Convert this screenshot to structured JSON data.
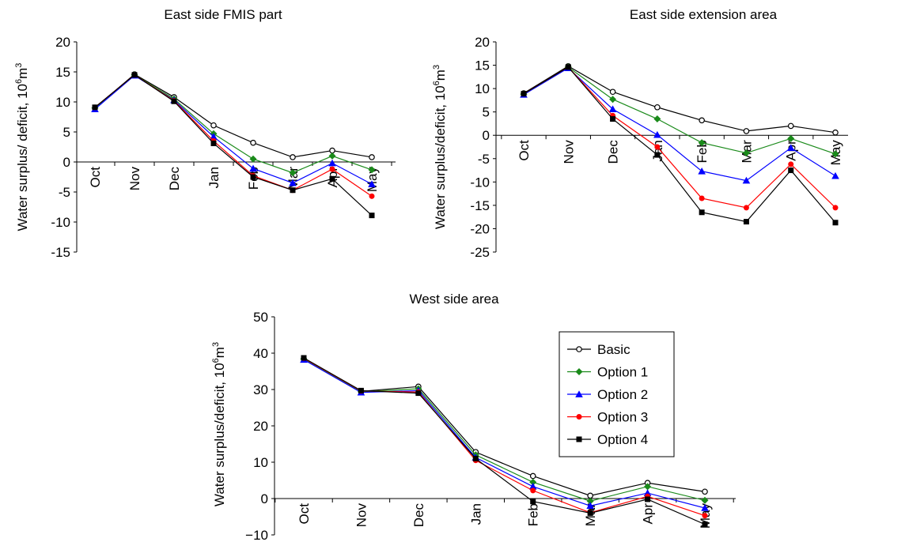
{
  "chart_data": [
    {
      "type": "line",
      "title": "East side FMIS part",
      "ylabel": "Water surplus/ deficit, 10",
      "ylabel_sup": "6",
      "ylabel_unit": "m",
      "ylabel_unit_sup": "3",
      "categories": [
        "Oct",
        "Nov",
        "Dec",
        "Jan",
        "Feb",
        "Mar",
        "Apr",
        "May"
      ],
      "ylim": [
        -15,
        20
      ],
      "yticks": [
        "20",
        "15",
        "10",
        "5",
        "0",
        "-5",
        "-10",
        "-15"
      ],
      "series": [
        {
          "name": "Basic",
          "color": "#000000",
          "marker": "circle-open",
          "values": [
            9.0,
            14.6,
            10.8,
            6.1,
            3.2,
            0.8,
            1.9,
            0.8
          ]
        },
        {
          "name": "Option 1",
          "color": "#1a8a1a",
          "marker": "diamond",
          "values": [
            9.0,
            14.5,
            10.5,
            4.7,
            0.5,
            -1.8,
            1.0,
            -1.3
          ]
        },
        {
          "name": "Option 2",
          "color": "#0000ff",
          "marker": "triangle",
          "values": [
            8.8,
            14.4,
            10.3,
            4.2,
            -1.1,
            -3.5,
            -0.2,
            -3.7
          ]
        },
        {
          "name": "Option 3",
          "color": "#ff0000",
          "marker": "circle",
          "values": [
            9.1,
            14.5,
            10.2,
            3.5,
            -2.3,
            -4.7,
            -1.2,
            -5.7
          ]
        },
        {
          "name": "Option 4",
          "color": "#000000",
          "marker": "square",
          "values": [
            9.1,
            14.5,
            10.1,
            3.1,
            -2.5,
            -4.7,
            -2.8,
            -8.9
          ]
        }
      ]
    },
    {
      "type": "line",
      "title": "East side extension area",
      "ylabel": "Water surplus/deficit, 10",
      "ylabel_sup": "6",
      "ylabel_unit": "m",
      "ylabel_unit_sup": "3",
      "categories": [
        "Oct",
        "Nov",
        "Dec",
        "Jan",
        "Feb",
        "Mar",
        "Apr",
        "May"
      ],
      "ylim": [
        -25,
        20
      ],
      "yticks": [
        "20",
        "15",
        "10",
        "5",
        "0",
        "-5",
        "-10",
        "-15",
        "-20",
        "-25"
      ],
      "series": [
        {
          "name": "Basic",
          "color": "#000000",
          "marker": "circle-open",
          "values": [
            9.0,
            14.8,
            9.3,
            6.0,
            3.2,
            0.9,
            2.0,
            0.6
          ]
        },
        {
          "name": "Option 1",
          "color": "#1a8a1a",
          "marker": "diamond",
          "values": [
            8.8,
            14.6,
            7.7,
            3.5,
            -1.6,
            -3.8,
            -0.7,
            -4.0
          ]
        },
        {
          "name": "Option 2",
          "color": "#0000ff",
          "marker": "triangle",
          "values": [
            8.7,
            14.4,
            5.6,
            0.1,
            -7.7,
            -9.7,
            -2.7,
            -8.7
          ]
        },
        {
          "name": "Option 3",
          "color": "#ff0000",
          "marker": "circle",
          "values": [
            8.9,
            14.6,
            4.2,
            -2.5,
            -13.5,
            -15.5,
            -6.2,
            -15.5
          ]
        },
        {
          "name": "Option 4",
          "color": "#000000",
          "marker": "square",
          "values": [
            8.9,
            14.6,
            3.5,
            -4.2,
            -16.5,
            -18.5,
            -7.5,
            -18.7
          ]
        }
      ]
    },
    {
      "type": "line",
      "title": "West side area",
      "ylabel": "Water surplus/deficit, 10",
      "ylabel_sup": "6",
      "ylabel_unit": "m",
      "ylabel_unit_sup": "3",
      "categories": [
        "Oct",
        "Nov",
        "Dec",
        "Jan",
        "Feb",
        "Mar",
        "Apr",
        "May"
      ],
      "ylim": [
        -10,
        50
      ],
      "yticks": [
        "50",
        "40",
        "30",
        "20",
        "10",
        "0",
        "−10"
      ],
      "legend": "right",
      "series": [
        {
          "name": "Basic",
          "color": "#000000",
          "marker": "circle-open",
          "values": [
            38.5,
            29.5,
            30.8,
            12.8,
            6.2,
            0.8,
            4.3,
            1.9
          ]
        },
        {
          "name": "Option 1",
          "color": "#1a8a1a",
          "marker": "diamond",
          "values": [
            38.4,
            29.4,
            30.2,
            12.0,
            4.5,
            -0.7,
            3.3,
            -0.5
          ]
        },
        {
          "name": "Option 2",
          "color": "#0000ff",
          "marker": "triangle",
          "values": [
            38.2,
            29.2,
            29.7,
            11.3,
            3.3,
            -2.0,
            1.5,
            -2.6
          ]
        },
        {
          "name": "Option 3",
          "color": "#ff0000",
          "marker": "circle",
          "values": [
            38.6,
            29.6,
            29.3,
            10.5,
            2.2,
            -3.9,
            0.6,
            -4.7
          ]
        },
        {
          "name": "Option 4",
          "color": "#000000",
          "marker": "square",
          "values": [
            38.7,
            29.7,
            29.0,
            11.0,
            -0.8,
            -4.0,
            -0.2,
            -7.1
          ]
        }
      ]
    }
  ]
}
